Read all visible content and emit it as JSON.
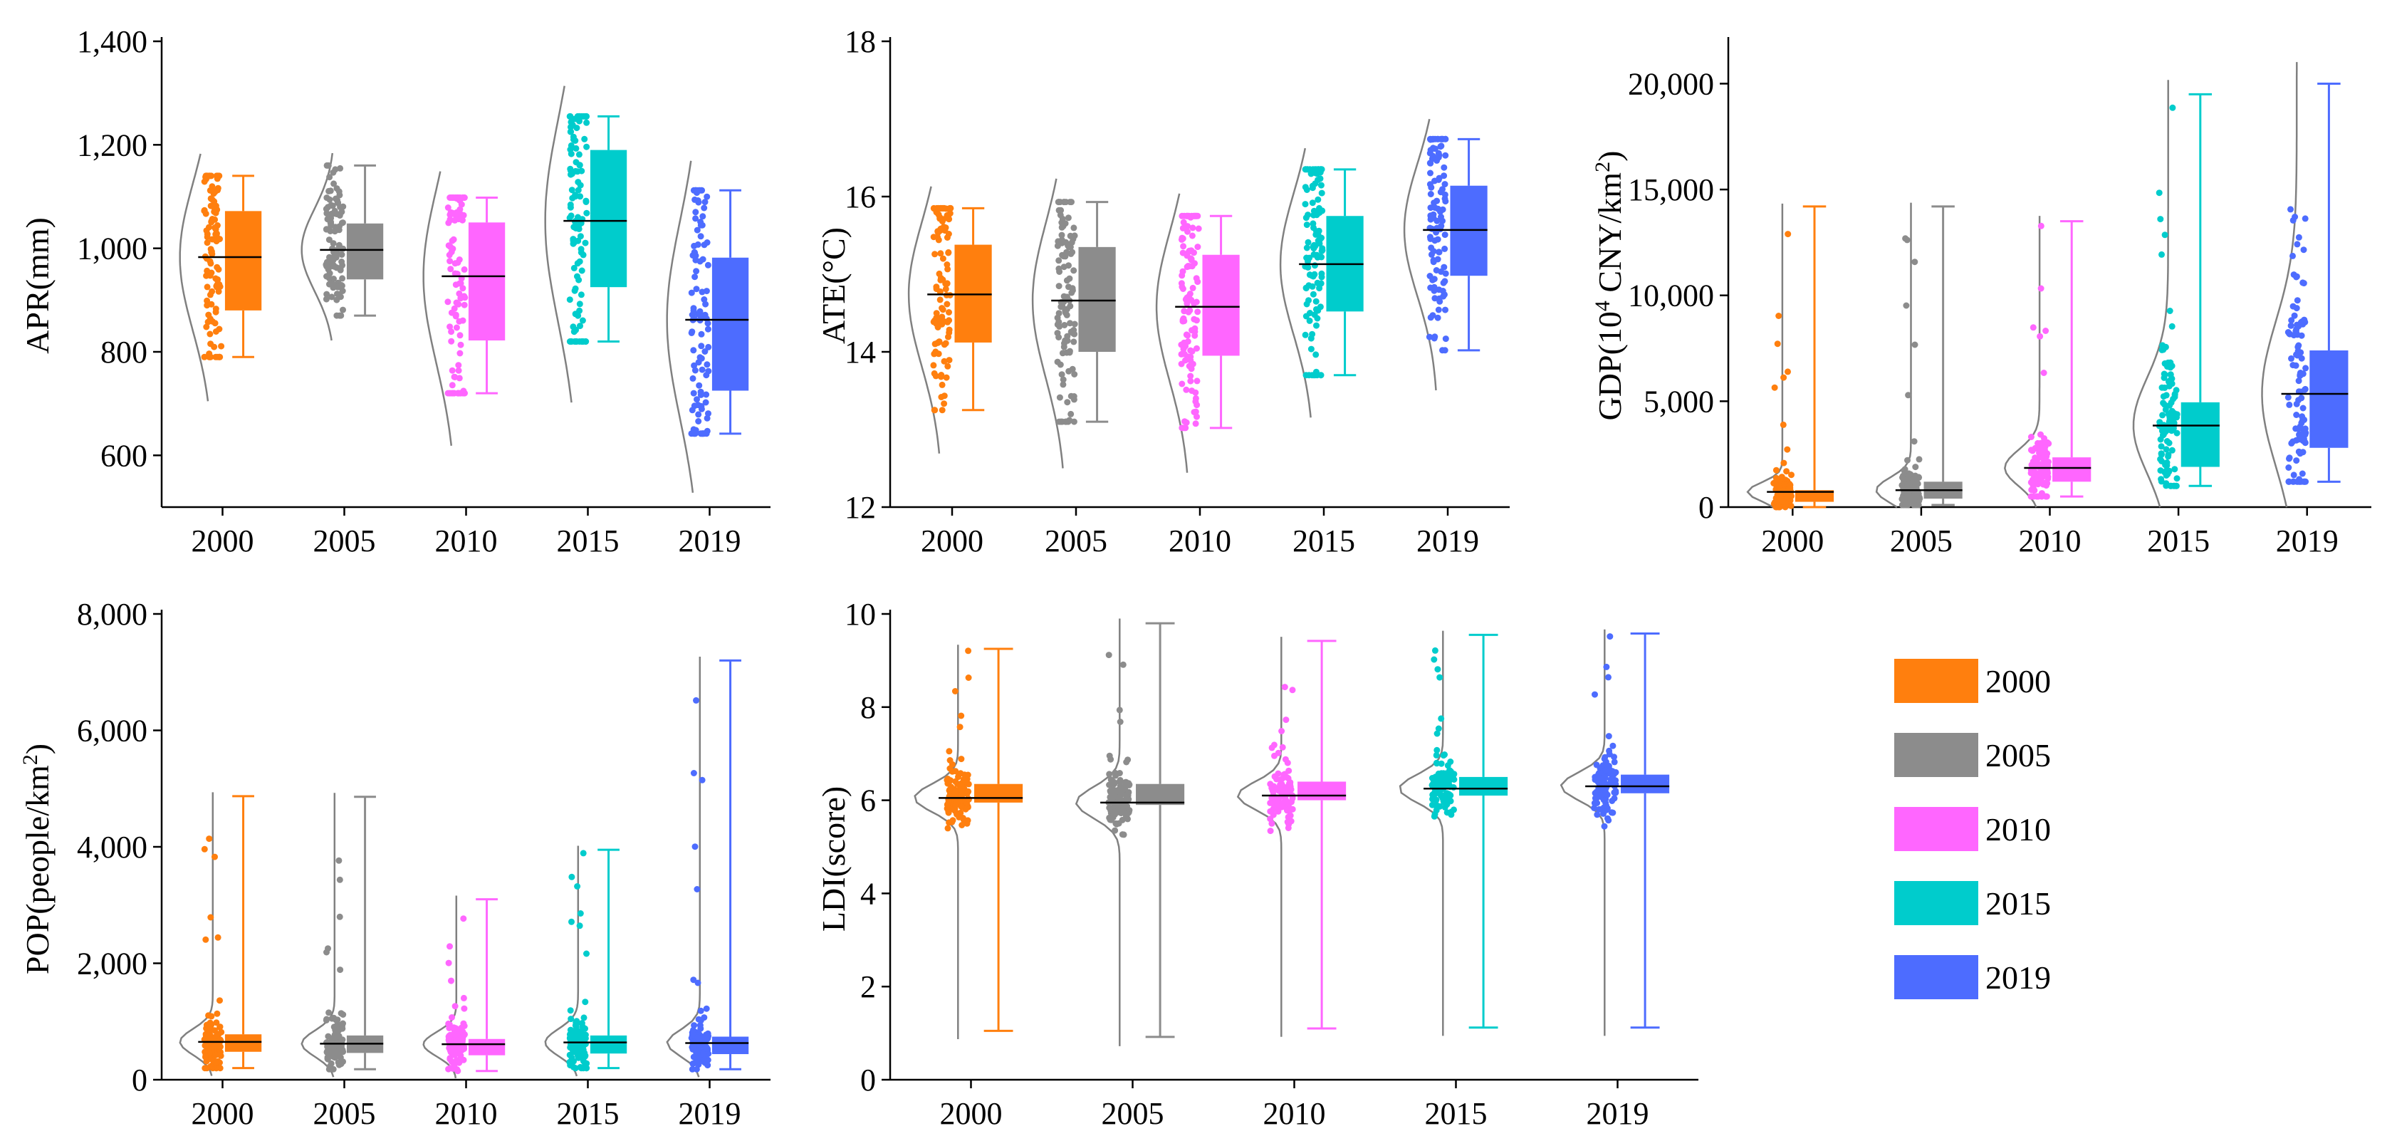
{
  "colors": {
    "2000": "#ff7f0e",
    "2005": "#8c8c8c",
    "2010": "#ff66ff",
    "2015": "#00cccc",
    "2019": "#4d6cff",
    "density": "#808080",
    "axis": "#000000"
  },
  "legend": {
    "items": [
      {
        "label": "2000",
        "color": "#ff7f0e"
      },
      {
        "label": "2005",
        "color": "#8c8c8c"
      },
      {
        "label": "2010",
        "color": "#ff66ff"
      },
      {
        "label": "2015",
        "color": "#00cccc"
      },
      {
        "label": "2019",
        "color": "#4d6cff"
      }
    ]
  },
  "chart_data": [
    {
      "id": "apr",
      "type": "box",
      "ylabel": "APR(mm)",
      "categories": [
        "2000",
        "2005",
        "2010",
        "2015",
        "2019"
      ],
      "ylim": [
        500,
        1400
      ],
      "yticks": [
        600,
        800,
        1000,
        1200,
        1400
      ],
      "ytick_labels": [
        "600",
        "800",
        "1,000",
        "1,200",
        "1,400"
      ],
      "series": [
        {
          "year": "2000",
          "min": 790,
          "q1": 880,
          "median": 983,
          "q3": 1072,
          "max": 1140,
          "data_min": 790,
          "data_max": 1140
        },
        {
          "year": "2005",
          "min": 870,
          "q1": 940,
          "median": 997,
          "q3": 1048,
          "max": 1160,
          "data_min": 870,
          "data_max": 1160
        },
        {
          "year": "2010",
          "min": 720,
          "q1": 822,
          "median": 946,
          "q3": 1050,
          "max": 1098,
          "data_min": 720,
          "data_max": 1098
        },
        {
          "year": "2015",
          "min": 820,
          "q1": 925,
          "median": 1053,
          "q3": 1190,
          "max": 1255,
          "data_min": 820,
          "data_max": 1255
        },
        {
          "year": "2019",
          "min": 642,
          "q1": 725,
          "median": 862,
          "q3": 982,
          "max": 1112,
          "data_min": 642,
          "data_max": 1112
        }
      ]
    },
    {
      "id": "ate",
      "type": "box",
      "ylabel": "ATE(°C)",
      "categories": [
        "2000",
        "2005",
        "2010",
        "2015",
        "2019"
      ],
      "ylim": [
        12,
        18
      ],
      "yticks": [
        12,
        14,
        16,
        18
      ],
      "ytick_labels": [
        "12",
        "14",
        "16",
        "18"
      ],
      "series": [
        {
          "year": "2000",
          "min": 13.25,
          "q1": 14.12,
          "median": 14.74,
          "q3": 15.38,
          "max": 15.85,
          "data_min": 13.25,
          "data_max": 15.85
        },
        {
          "year": "2005",
          "min": 13.1,
          "q1": 14.0,
          "median": 14.66,
          "q3": 15.35,
          "max": 15.93,
          "data_min": 13.1,
          "data_max": 15.93
        },
        {
          "year": "2010",
          "min": 13.02,
          "q1": 13.95,
          "median": 14.58,
          "q3": 15.25,
          "max": 15.75,
          "data_min": 13.02,
          "data_max": 15.75
        },
        {
          "year": "2015",
          "min": 13.7,
          "q1": 14.52,
          "median": 15.13,
          "q3": 15.75,
          "max": 16.35,
          "data_min": 13.7,
          "data_max": 16.35
        },
        {
          "year": "2019",
          "min": 14.02,
          "q1": 14.98,
          "median": 15.57,
          "q3": 16.14,
          "max": 16.74,
          "data_min": 14.02,
          "data_max": 16.74
        }
      ]
    },
    {
      "id": "gdp",
      "type": "box",
      "ylabel": "GDP(10",
      "ylabel_sup": "4",
      "ylabel_mid": " CNY/km",
      "ylabel_sup2": "2",
      "ylabel_end": ")",
      "categories": [
        "2000",
        "2005",
        "2010",
        "2015",
        "2019"
      ],
      "ylim": [
        0,
        22000
      ],
      "yticks": [
        0,
        5000,
        10000,
        15000,
        20000
      ],
      "ytick_labels": [
        "0",
        "5,000",
        "10,000",
        "15,000",
        "20,000"
      ],
      "series": [
        {
          "year": "2000",
          "min": 0,
          "q1": 250,
          "median": 720,
          "q3": 800,
          "max": 14200,
          "data_min": 0,
          "data_max": 14200
        },
        {
          "year": "2005",
          "min": 100,
          "q1": 400,
          "median": 800,
          "q3": 1200,
          "max": 14200,
          "data_min": 100,
          "data_max": 14200
        },
        {
          "year": "2010",
          "min": 500,
          "q1": 1200,
          "median": 1850,
          "q3": 2350,
          "max": 13500,
          "data_min": 500,
          "data_max": 13500
        },
        {
          "year": "2015",
          "min": 1000,
          "q1": 1900,
          "median": 3850,
          "q3": 4950,
          "max": 19500,
          "data_min": 1000,
          "data_max": 19500
        },
        {
          "year": "2019",
          "min": 1200,
          "q1": 2800,
          "median": 5350,
          "q3": 7400,
          "max": 20000,
          "data_min": 1200,
          "data_max": 20000
        }
      ]
    },
    {
      "id": "pop",
      "type": "box",
      "ylabel": "POP(people/km",
      "ylabel_sup": "2",
      "ylabel_end": ")",
      "categories": [
        "2000",
        "2005",
        "2010",
        "2015",
        "2019"
      ],
      "ylim": [
        0,
        8000
      ],
      "yticks": [
        0,
        2000,
        4000,
        6000,
        8000
      ],
      "ytick_labels": [
        "0",
        "2,000",
        "4,000",
        "6,000",
        "8,000"
      ],
      "series": [
        {
          "year": "2000",
          "min": 200,
          "q1": 480,
          "median": 650,
          "q3": 780,
          "max": 4870,
          "data_min": 200,
          "data_max": 4870
        },
        {
          "year": "2005",
          "min": 180,
          "q1": 460,
          "median": 620,
          "q3": 760,
          "max": 4860,
          "data_min": 180,
          "data_max": 4860
        },
        {
          "year": "2010",
          "min": 150,
          "q1": 420,
          "median": 610,
          "q3": 700,
          "max": 3100,
          "data_min": 150,
          "data_max": 3100
        },
        {
          "year": "2015",
          "min": 200,
          "q1": 450,
          "median": 640,
          "q3": 760,
          "max": 3950,
          "data_min": 200,
          "data_max": 3950
        },
        {
          "year": "2019",
          "min": 180,
          "q1": 440,
          "median": 630,
          "q3": 740,
          "max": 7200,
          "data_min": 180,
          "data_max": 7200
        }
      ]
    },
    {
      "id": "ldi",
      "type": "box",
      "ylabel": "LDI(score)",
      "categories": [
        "2000",
        "2005",
        "2010",
        "2015",
        "2019"
      ],
      "ylim": [
        0,
        10
      ],
      "yticks": [
        0,
        2,
        4,
        6,
        8,
        10
      ],
      "ytick_labels": [
        "0",
        "2",
        "4",
        "6",
        "8",
        "10"
      ],
      "series": [
        {
          "year": "2000",
          "min": 1.05,
          "q1": 5.95,
          "median": 6.05,
          "q3": 6.35,
          "max": 9.25,
          "data_min": 1.05,
          "data_max": 9.25
        },
        {
          "year": "2005",
          "min": 0.92,
          "q1": 5.9,
          "median": 5.95,
          "q3": 6.35,
          "max": 9.8,
          "data_min": 0.92,
          "data_max": 9.8
        },
        {
          "year": "2010",
          "min": 1.1,
          "q1": 6.0,
          "median": 6.1,
          "q3": 6.4,
          "max": 9.42,
          "data_min": 1.1,
          "data_max": 9.42
        },
        {
          "year": "2015",
          "min": 1.12,
          "q1": 6.1,
          "median": 6.25,
          "q3": 6.5,
          "max": 9.55,
          "data_min": 1.12,
          "data_max": 9.55
        },
        {
          "year": "2019",
          "min": 1.12,
          "q1": 6.15,
          "median": 6.3,
          "q3": 6.55,
          "max": 9.58,
          "data_min": 1.12,
          "data_max": 9.58
        }
      ]
    }
  ]
}
